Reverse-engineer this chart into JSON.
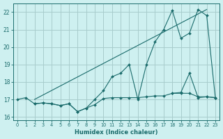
{
  "xlabel": "Humidex (Indice chaleur)",
  "background_color": "#cef0f0",
  "grid_color": "#a8cccc",
  "line_color": "#1a6b6b",
  "xlim": [
    -0.5,
    23.5
  ],
  "ylim": [
    15.8,
    22.5
  ],
  "yticks": [
    16,
    17,
    18,
    19,
    20,
    21,
    22
  ],
  "xticks": [
    0,
    1,
    2,
    3,
    4,
    5,
    6,
    7,
    8,
    9,
    10,
    11,
    12,
    13,
    14,
    15,
    16,
    17,
    18,
    19,
    20,
    21,
    22,
    23
  ],
  "curve1_x": [
    0,
    1,
    2,
    3,
    4,
    5,
    6,
    7,
    8,
    9,
    10,
    11,
    12,
    13,
    14,
    15,
    16,
    17,
    18,
    19,
    20,
    21,
    22,
    23
  ],
  "curve1_y": [
    17.0,
    17.1,
    16.75,
    16.8,
    16.75,
    16.65,
    16.75,
    16.3,
    16.5,
    16.7,
    17.05,
    17.1,
    17.1,
    17.1,
    17.1,
    17.15,
    17.2,
    17.2,
    17.35,
    17.35,
    17.35,
    17.15,
    17.15,
    17.1
  ],
  "curve2_x": [
    2,
    3,
    4,
    5,
    6,
    7,
    8,
    9,
    10,
    11,
    12,
    13,
    14,
    15,
    16,
    17,
    18,
    19,
    20,
    21,
    22,
    23
  ],
  "curve2_y": [
    16.75,
    16.8,
    16.75,
    16.65,
    16.75,
    16.3,
    16.5,
    17.0,
    17.5,
    18.3,
    18.5,
    19.0,
    17.0,
    19.0,
    20.3,
    21.0,
    22.1,
    20.5,
    20.8,
    22.15,
    21.8,
    17.1
  ],
  "curve4_x": [
    18,
    19,
    20,
    21,
    22,
    23
  ],
  "curve4_y": [
    17.35,
    17.4,
    18.5,
    17.1,
    17.15,
    17.1
  ]
}
